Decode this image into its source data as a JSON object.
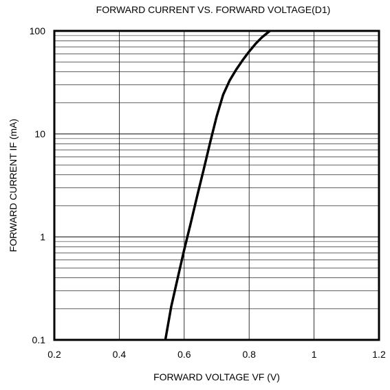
{
  "chart_data": {
    "type": "line",
    "title": "FORWARD CURRENT VS. FORWARD VOLTAGE(D1)",
    "xlabel": "FORWARD VOLTAGE VF (V)",
    "ylabel": "FORWARD CURRENT IF (mA)",
    "xlim": [
      0.2,
      1.2
    ],
    "ylim": [
      0.1,
      100
    ],
    "yscale": "log",
    "xticks": [
      0.2,
      0.4,
      0.6,
      0.8,
      1.0,
      1.2
    ],
    "xtick_labels": [
      "0.2",
      "0.4",
      "0.6",
      "0.8",
      "1",
      "1.2"
    ],
    "yticks": [
      0.1,
      1,
      10,
      100
    ],
    "ytick_labels": [
      "0.1",
      "1",
      "10",
      "100"
    ],
    "grid": true,
    "series": [
      {
        "x": [
          0.542,
          0.56,
          0.58,
          0.6,
          0.62,
          0.64,
          0.66,
          0.68,
          0.7,
          0.72,
          0.74,
          0.76,
          0.78,
          0.8,
          0.82,
          0.84,
          0.864
        ],
        "y": [
          0.1,
          0.21,
          0.4,
          0.75,
          1.35,
          2.5,
          4.5,
          8.3,
          14.8,
          24.0,
          33.0,
          42.0,
          52.0,
          63.0,
          75.0,
          87.0,
          100.0
        ]
      }
    ],
    "colors": {
      "line": "#000000",
      "grid": "#000000"
    }
  }
}
